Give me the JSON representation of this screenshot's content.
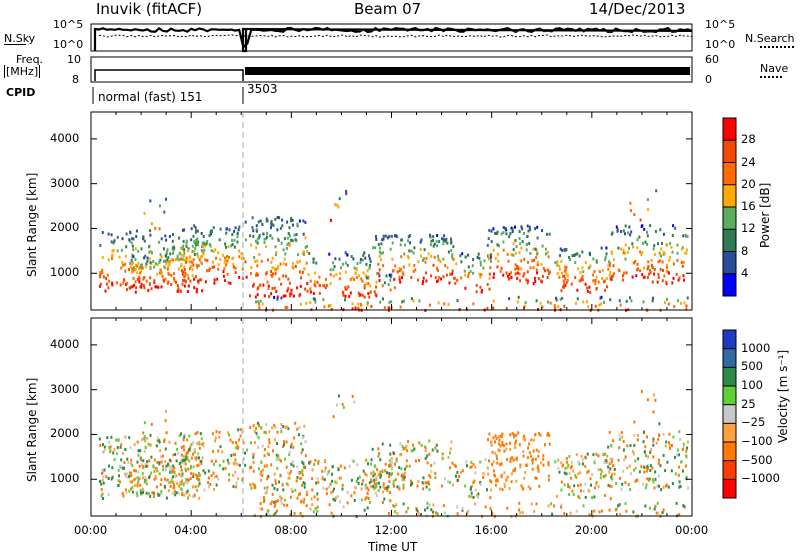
{
  "header": {
    "station": "Inuvik (fitACF)",
    "beam": "Beam 07",
    "date": "14/Dec/2013"
  },
  "small_panels": {
    "nsky_label": "N.Sky",
    "nsearch_label": "N.Search",
    "noise_ticks": [
      "10^5",
      "10^0"
    ],
    "freq_label_line1": "Freq.",
    "freq_label_line2": "[MHz]",
    "freq_ticks": [
      "10",
      "8"
    ],
    "nave_label": "Nave",
    "nave_ticks": [
      "60",
      "0"
    ],
    "cpid_label": "CPID",
    "cpid_1": "normal (fast) 151",
    "cpid_2": "3503"
  },
  "colors": {
    "power": [
      "#0000ff",
      "#2b4c9a",
      "#2f7a52",
      "#5aae61",
      "#ffaa00",
      "#ff6a00",
      "#f24a00",
      "#ff0000"
    ],
    "velocity": [
      "#ff0000",
      "#ff3c00",
      "#ff7800",
      "#ffa040",
      "#c8c8c8",
      "#5fd03a",
      "#2f8a4a",
      "#2f6aa0",
      "#1f3ac0"
    ]
  },
  "chart_data": [
    {
      "type": "heatmap",
      "name": "power",
      "title": "",
      "xlabel": "",
      "ylabel": "Slant Range [km]",
      "xlim": [
        "00:00",
        "24:00"
      ],
      "ylim": [
        180,
        4600
      ],
      "yticks": [
        "1000",
        "2000",
        "3000",
        "4000"
      ],
      "colorbar_label": "Power [dB]",
      "colorbar_ticks": [
        "4",
        "8",
        "12",
        "16",
        "20",
        "24",
        "28"
      ],
      "grid": false
    },
    {
      "type": "heatmap",
      "name": "velocity",
      "title": "",
      "xlabel": "Time UT",
      "ylabel": "Slant Range [km]",
      "xlim": [
        "00:00",
        "24:00"
      ],
      "xticks": [
        "00:00",
        "04:00",
        "08:00",
        "12:00",
        "16:00",
        "20:00",
        "00:00"
      ],
      "ylim": [
        180,
        4600
      ],
      "yticks": [
        "1000",
        "2000",
        "3000",
        "4000"
      ],
      "colorbar_label": "Velocity [m s⁻¹]",
      "colorbar_ticks": [
        "1000",
        "500",
        "100",
        "25",
        "−25",
        "−100",
        "−500",
        "−1000"
      ],
      "grid": false
    }
  ]
}
